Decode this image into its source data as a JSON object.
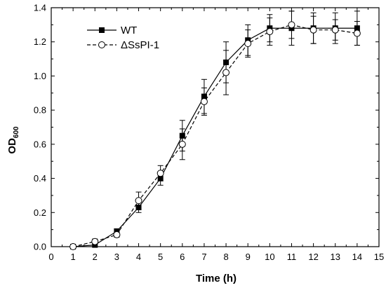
{
  "chart_data": {
    "type": "line",
    "title": "",
    "xlabel": "Time (h)",
    "ylabel_main": "OD",
    "ylabel_sub": "600",
    "xlim": [
      0,
      15
    ],
    "ylim": [
      0,
      1.4
    ],
    "xticks": [
      0,
      1,
      2,
      3,
      4,
      5,
      6,
      7,
      8,
      9,
      10,
      11,
      12,
      13,
      14,
      15
    ],
    "yticks": [
      "0.0",
      "0.2",
      "0.4",
      "0.6",
      "0.8",
      "1.0",
      "1.2",
      "1.4"
    ],
    "grid": false,
    "legend_position": "top-left",
    "x": [
      1,
      2,
      3,
      4,
      5,
      6,
      7,
      8,
      9,
      10,
      11,
      12,
      13,
      14
    ],
    "series": [
      {
        "name": "WT",
        "marker": "filled-square",
        "line": "solid",
        "values": [
          0.0,
          0.01,
          0.09,
          0.23,
          0.4,
          0.65,
          0.88,
          1.08,
          1.21,
          1.28,
          1.28,
          1.28,
          1.28,
          1.28
        ],
        "errors": [
          0.005,
          0.01,
          0.015,
          0.03,
          0.04,
          0.09,
          0.1,
          0.12,
          0.09,
          0.08,
          0.1,
          0.09,
          0.09,
          0.1
        ]
      },
      {
        "name": "ΔSsPI-1",
        "marker": "open-circle",
        "line": "dashed",
        "values": [
          0.0,
          0.03,
          0.07,
          0.27,
          0.43,
          0.6,
          0.85,
          1.02,
          1.19,
          1.26,
          1.3,
          1.27,
          1.27,
          1.25
        ],
        "errors": [
          0.005,
          0.015,
          0.015,
          0.05,
          0.045,
          0.09,
          0.08,
          0.13,
          0.08,
          0.08,
          0.08,
          0.08,
          0.06,
          0.07
        ]
      }
    ]
  }
}
